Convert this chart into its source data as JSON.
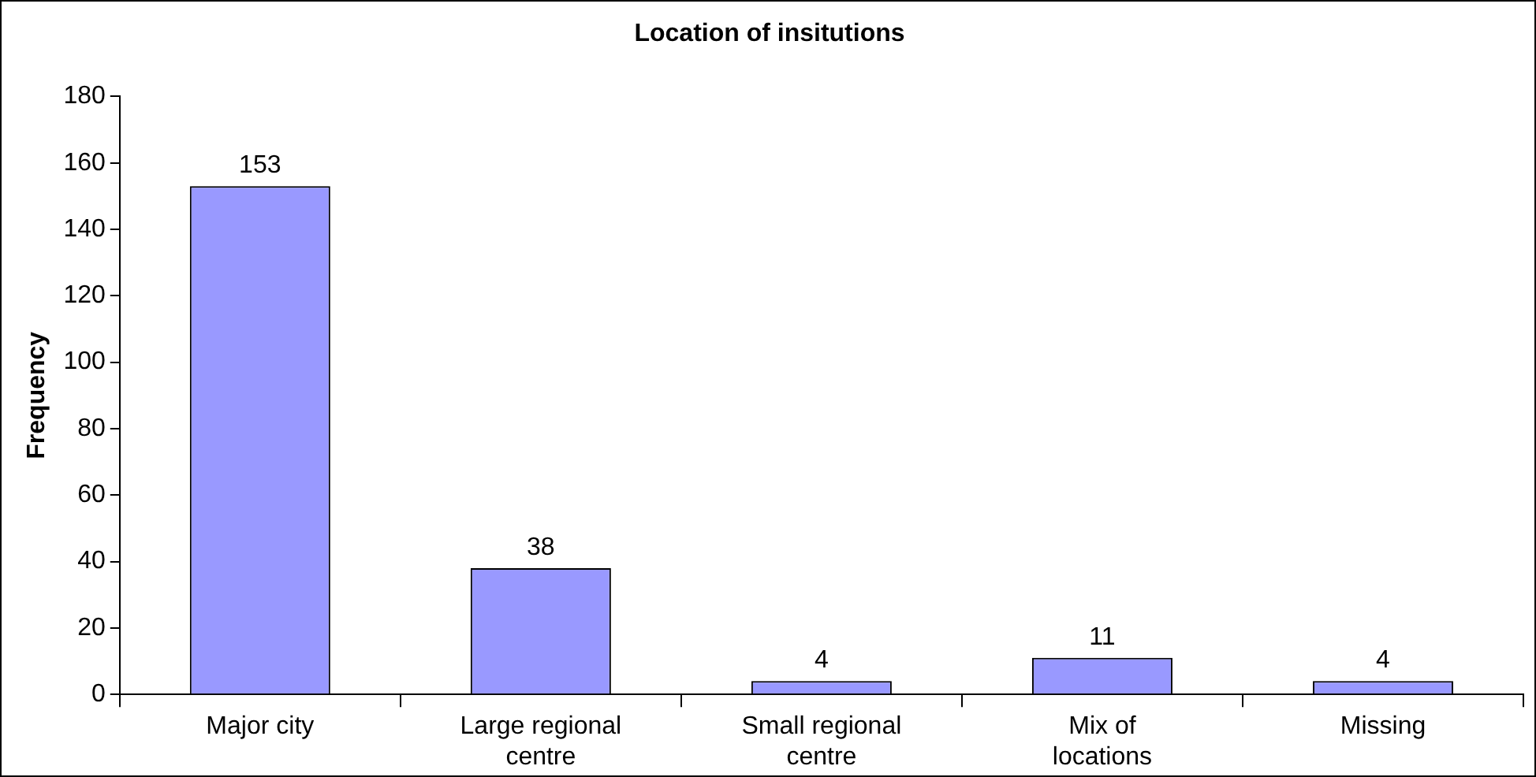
{
  "chart_data": {
    "type": "bar",
    "title": "Location of insitutions",
    "ylabel": "Frequency",
    "categories": [
      "Major city",
      "Large regional centre",
      "Small regional centre",
      "Mix of locations",
      "Missing"
    ],
    "values": [
      153,
      38,
      4,
      11,
      4
    ],
    "color": "#9999ff",
    "ylim": [
      0,
      180
    ],
    "yticks": [
      0,
      20,
      40,
      60,
      80,
      100,
      120,
      140,
      160,
      180
    ],
    "grid": false,
    "legend": false,
    "data_labels": true
  }
}
